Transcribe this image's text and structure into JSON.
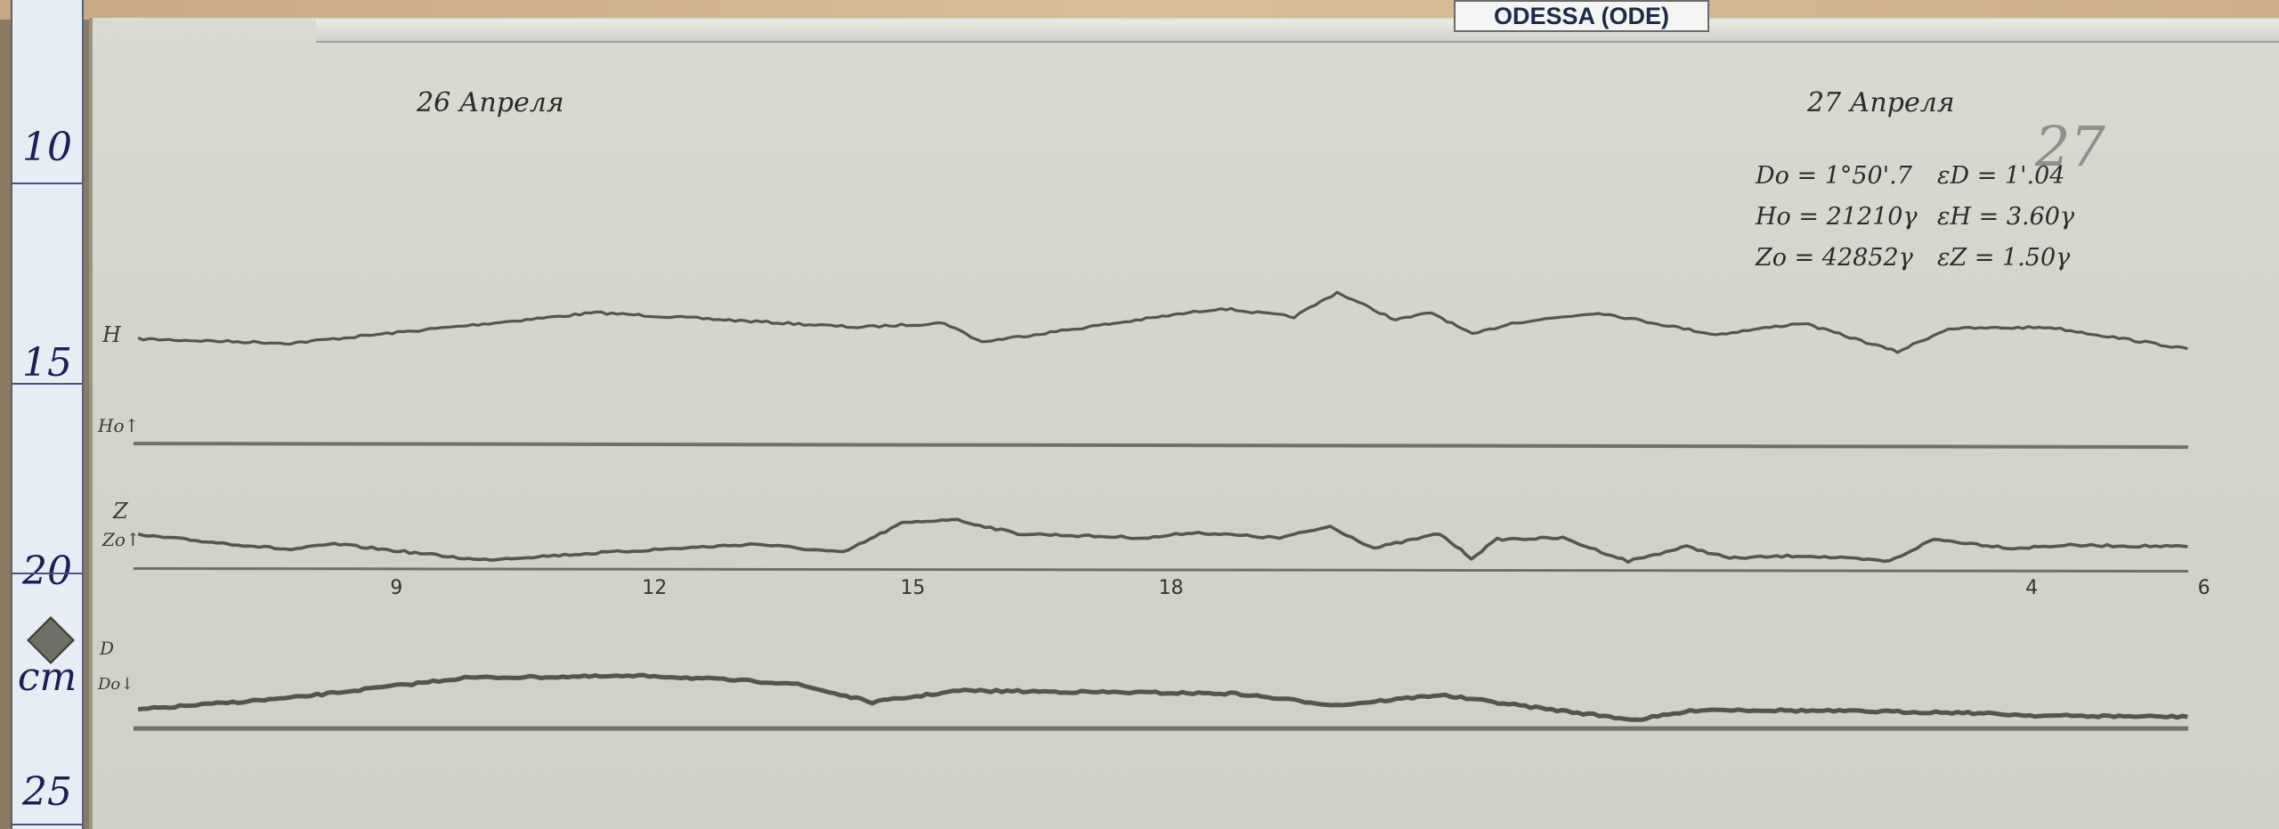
{
  "station_label": "ODESSA (ODE)",
  "ruler": {
    "labels": [
      "10",
      "15",
      "20",
      "25"
    ],
    "unit": "cm"
  },
  "dates": {
    "day1": "26 Апреля",
    "day2": "27 Апреля"
  },
  "pencil_note": "27",
  "parameters": {
    "D0": "Do = 1°50'.7",
    "H0": "Ho = 21210γ",
    "Z0": "Zo = 42852γ",
    "eD": "εD = 1'.04",
    "eH": "εH = 3.60γ",
    "eZ": "εZ = 1.50γ"
  },
  "trace_labels": {
    "H": "H",
    "H0": "Ho↑",
    "Z": "Z",
    "Z0": "Zo↑",
    "D": "D",
    "D0": "Do↓"
  },
  "colors": {
    "trace": "#3d3f3c",
    "baseline": "#6e706b",
    "paper": "#d6d8ce"
  },
  "chart_data": {
    "type": "line",
    "title": "",
    "xlabel": "",
    "ylabel": "",
    "x_units": "hours (6 on 26 April to 6 on 27 April)",
    "y_units": "mm deflection above baseline",
    "xlim": [
      6,
      30
    ],
    "time_ticks": [
      {
        "label": "9",
        "hour": 9
      },
      {
        "label": "12",
        "hour": 12
      },
      {
        "label": "15",
        "hour": 15
      },
      {
        "label": "18",
        "hour": 18
      },
      {
        "label": "4",
        "hour": 28
      },
      {
        "label": "6",
        "hour": 30
      }
    ],
    "series": [
      {
        "name": "H",
        "x": [
          6.0,
          7.77,
          11.32,
          14.36,
          15.37,
          15.8,
          18.58,
          19.43,
          19.93,
          20.61,
          21.03,
          21.5,
          21.96,
          22.97,
          24.33,
          25.34,
          26.44,
          27.03,
          28.21,
          29.81
        ],
        "y": [
          24.3,
          23.3,
          30.4,
          27.0,
          28.0,
          23.6,
          31.4,
          29.4,
          35.1,
          28.7,
          30.4,
          25.3,
          28.0,
          30.4,
          25.3,
          28.0,
          21.3,
          26.7,
          27.0,
          22.0
        ]
      },
      {
        "name": "Z",
        "x": [
          6.0,
          7.77,
          8.28,
          9.97,
          12.0,
          13.18,
          14.19,
          14.87,
          15.46,
          16.22,
          17.74,
          18.25,
          19.26,
          19.85,
          20.36,
          21.12,
          21.49,
          21.79,
          22.55,
          23.31,
          23.99,
          24.49,
          25.34,
          26.35,
          26.86,
          27.79,
          28.38,
          29.81
        ],
        "y": [
          7.8,
          4.4,
          5.7,
          2.0,
          4.4,
          5.7,
          3.7,
          10.5,
          11.5,
          8.1,
          7.1,
          8.4,
          7.1,
          9.8,
          4.7,
          8.1,
          2.4,
          6.8,
          7.1,
          1.7,
          5.1,
          2.4,
          3.0,
          1.7,
          6.8,
          4.7,
          5.4,
          5.1
        ]
      },
      {
        "name": "D",
        "x": [
          6.0,
          7.77,
          9.8,
          12.0,
          13.6,
          14.53,
          15.54,
          18.75,
          19.93,
          21.12,
          22.3,
          23.4,
          24.16,
          25.51,
          27.2,
          28.04,
          29.81
        ],
        "y": [
          4.4,
          7.1,
          11.8,
          12.2,
          10.5,
          6.1,
          8.8,
          8.1,
          5.4,
          7.8,
          4.7,
          2.0,
          4.4,
          4.1,
          3.7,
          3.0,
          2.7
        ]
      }
    ]
  }
}
